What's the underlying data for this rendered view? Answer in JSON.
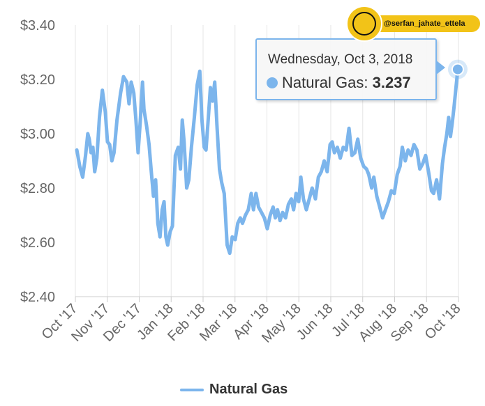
{
  "chart_data": {
    "type": "line",
    "title": "",
    "xlabel": "",
    "ylabel": "",
    "ylim": [
      2.4,
      3.4
    ],
    "y_ticks": [
      "$2.40",
      "$2.60",
      "$2.80",
      "$3.00",
      "$3.20",
      "$3.40"
    ],
    "x_ticks": [
      "Oct '17",
      "Nov '17",
      "Dec '17",
      "Jan '18",
      "Feb '18",
      "Mar '18",
      "Apr '18",
      "May '18",
      "Jun '18",
      "Jul '18",
      "Aug '18",
      "Sep '18",
      "Oct '18"
    ],
    "grid": "vertical",
    "legend_position": "bottom",
    "series": [
      {
        "name": "Natural Gas",
        "color": "#7cb5ec",
        "values": [
          [
            2017.756,
            2.94
          ],
          [
            2017.764,
            2.88
          ],
          [
            2017.772,
            2.84
          ],
          [
            2017.78,
            2.92
          ],
          [
            2017.786,
            3.0
          ],
          [
            2017.79,
            2.98
          ],
          [
            2017.795,
            2.93
          ],
          [
            2017.8,
            2.95
          ],
          [
            2017.805,
            2.86
          ],
          [
            2017.811,
            2.91
          ],
          [
            2017.818,
            3.06
          ],
          [
            2017.826,
            3.16
          ],
          [
            2017.834,
            3.08
          ],
          [
            2017.84,
            2.97
          ],
          [
            2017.846,
            2.96
          ],
          [
            2017.852,
            2.9
          ],
          [
            2017.858,
            2.93
          ],
          [
            2017.866,
            3.05
          ],
          [
            2017.876,
            3.15
          ],
          [
            2017.884,
            3.21
          ],
          [
            2017.893,
            3.19
          ],
          [
            2017.899,
            3.11
          ],
          [
            2017.905,
            3.19
          ],
          [
            2017.912,
            3.15
          ],
          [
            2017.918,
            3.05
          ],
          [
            2017.924,
            2.93
          ],
          [
            2017.93,
            3.05
          ],
          [
            2017.936,
            3.19
          ],
          [
            2017.94,
            3.09
          ],
          [
            2017.947,
            3.03
          ],
          [
            2017.954,
            2.96
          ],
          [
            2017.96,
            2.86
          ],
          [
            2017.966,
            2.77
          ],
          [
            2017.972,
            2.83
          ],
          [
            2017.978,
            2.67
          ],
          [
            2017.984,
            2.62
          ],
          [
            2017.99,
            2.72
          ],
          [
            2017.995,
            2.75
          ],
          [
            2018.0,
            2.62
          ],
          [
            2018.005,
            2.59
          ],
          [
            2018.012,
            2.64
          ],
          [
            2018.018,
            2.66
          ],
          [
            2018.026,
            2.92
          ],
          [
            2018.034,
            2.95
          ],
          [
            2018.04,
            2.87
          ],
          [
            2018.045,
            3.05
          ],
          [
            2018.05,
            2.97
          ],
          [
            2018.057,
            2.8
          ],
          [
            2018.063,
            2.83
          ],
          [
            2018.07,
            2.95
          ],
          [
            2018.078,
            3.06
          ],
          [
            2018.086,
            3.18
          ],
          [
            2018.093,
            3.23
          ],
          [
            2018.099,
            3.05
          ],
          [
            2018.105,
            2.95
          ],
          [
            2018.11,
            2.94
          ],
          [
            2018.116,
            3.05
          ],
          [
            2018.122,
            3.17
          ],
          [
            2018.128,
            3.12
          ],
          [
            2018.134,
            3.19
          ],
          [
            2018.14,
            3.03
          ],
          [
            2018.147,
            2.87
          ],
          [
            2018.153,
            2.82
          ],
          [
            2018.16,
            2.78
          ],
          [
            2018.168,
            2.59
          ],
          [
            2018.175,
            2.56
          ],
          [
            2018.182,
            2.62
          ],
          [
            2018.19,
            2.61
          ],
          [
            2018.197,
            2.67
          ],
          [
            2018.204,
            2.69
          ],
          [
            2018.21,
            2.67
          ],
          [
            2018.218,
            2.7
          ],
          [
            2018.226,
            2.72
          ],
          [
            2018.234,
            2.78
          ],
          [
            2018.24,
            2.72
          ],
          [
            2018.247,
            2.78
          ],
          [
            2018.254,
            2.73
          ],
          [
            2018.262,
            2.71
          ],
          [
            2018.27,
            2.69
          ],
          [
            2018.278,
            2.65
          ],
          [
            2018.286,
            2.7
          ],
          [
            2018.294,
            2.73
          ],
          [
            2018.3,
            2.69
          ],
          [
            2018.306,
            2.72
          ],
          [
            2018.313,
            2.68
          ],
          [
            2018.32,
            2.71
          ],
          [
            2018.328,
            2.69
          ],
          [
            2018.336,
            2.74
          ],
          [
            2018.344,
            2.76
          ],
          [
            2018.35,
            2.72
          ],
          [
            2018.357,
            2.78
          ],
          [
            2018.364,
            2.75
          ],
          [
            2018.37,
            2.84
          ],
          [
            2018.377,
            2.76
          ],
          [
            2018.385,
            2.72
          ],
          [
            2018.393,
            2.76
          ],
          [
            2018.401,
            2.8
          ],
          [
            2018.41,
            2.76
          ],
          [
            2018.418,
            2.84
          ],
          [
            2018.426,
            2.86
          ],
          [
            2018.434,
            2.9
          ],
          [
            2018.442,
            2.86
          ],
          [
            2018.45,
            2.96
          ],
          [
            2018.456,
            2.97
          ],
          [
            2018.462,
            2.93
          ],
          [
            2018.47,
            2.95
          ],
          [
            2018.478,
            2.91
          ],
          [
            2018.486,
            2.95
          ],
          [
            2018.494,
            2.94
          ],
          [
            2018.502,
            3.02
          ],
          [
            2018.51,
            2.92
          ],
          [
            2018.518,
            2.93
          ],
          [
            2018.526,
            2.98
          ],
          [
            2018.534,
            2.91
          ],
          [
            2018.542,
            2.88
          ],
          [
            2018.55,
            2.87
          ],
          [
            2018.556,
            2.85
          ],
          [
            2018.564,
            2.8
          ],
          [
            2018.57,
            2.84
          ],
          [
            2018.578,
            2.77
          ],
          [
            2018.586,
            2.73
          ],
          [
            2018.594,
            2.69
          ],
          [
            2018.602,
            2.72
          ],
          [
            2018.61,
            2.75
          ],
          [
            2018.618,
            2.79
          ],
          [
            2018.626,
            2.78
          ],
          [
            2018.634,
            2.85
          ],
          [
            2018.642,
            2.88
          ],
          [
            2018.648,
            2.95
          ],
          [
            2018.656,
            2.9
          ],
          [
            2018.664,
            2.94
          ],
          [
            2018.672,
            2.92
          ],
          [
            2018.68,
            2.96
          ],
          [
            2018.688,
            2.94
          ],
          [
            2018.696,
            2.87
          ],
          [
            2018.704,
            2.89
          ],
          [
            2018.712,
            2.92
          ],
          [
            2018.72,
            2.86
          ],
          [
            2018.728,
            2.79
          ],
          [
            2018.734,
            2.78
          ],
          [
            2018.742,
            2.83
          ],
          [
            2018.75,
            2.76
          ],
          [
            2018.758,
            2.89
          ],
          [
            2018.764,
            2.95
          ],
          [
            2018.77,
            3.0
          ],
          [
            2018.775,
            3.06
          ],
          [
            2018.78,
            2.99
          ],
          [
            2018.785,
            3.04
          ],
          [
            2018.79,
            3.1
          ],
          [
            2018.797,
            3.195
          ],
          [
            2018.8,
            3.237
          ]
        ]
      }
    ],
    "tooltip": {
      "date": "Wednesday, Oct 3, 2018",
      "series": "Natural Gas",
      "value": "3.237"
    }
  },
  "tooltip": {
    "date": "Wednesday, Oct 3, 2018",
    "label": "Natural Gas: ",
    "value": "3.237"
  },
  "legend": {
    "label": "Natural Gas"
  },
  "watermark": {
    "handle": "@serfan_jahate_ettela"
  }
}
